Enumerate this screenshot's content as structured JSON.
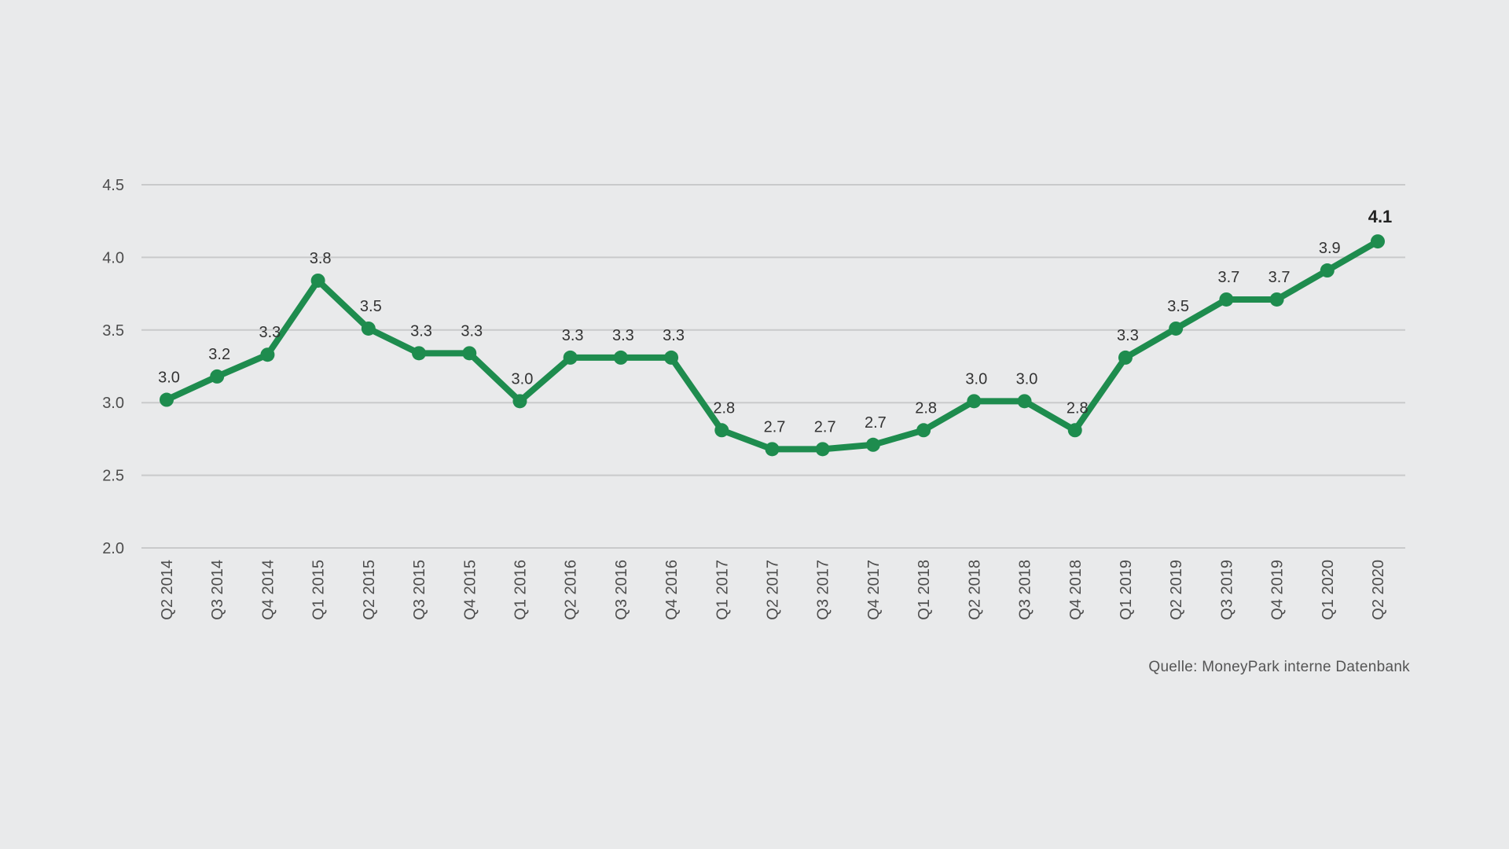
{
  "chart_data": {
    "type": "line",
    "categories": [
      "Q2 2014",
      "Q3 2014",
      "Q4 2014",
      "Q1 2015",
      "Q2 2015",
      "Q3 2015",
      "Q4 2015",
      "Q1 2016",
      "Q2 2016",
      "Q3 2016",
      "Q4 2016",
      "Q1 2017",
      "Q2 2017",
      "Q3 2017",
      "Q4 2017",
      "Q1 2018",
      "Q2 2018",
      "Q3 2018",
      "Q4 2018",
      "Q1 2019",
      "Q2 2019",
      "Q3 2019",
      "Q4 2019",
      "Q1 2020",
      "Q2 2020"
    ],
    "series": [
      {
        "values": [
          3.02,
          3.18,
          3.33,
          3.84,
          3.51,
          3.34,
          3.34,
          3.01,
          3.31,
          3.31,
          3.31,
          2.81,
          2.68,
          2.68,
          2.71,
          2.81,
          3.01,
          3.01,
          2.81,
          3.31,
          3.51,
          3.71,
          3.71,
          3.91,
          4.11
        ],
        "labels": [
          "3.0",
          "3.2",
          "3.3",
          "3.8",
          "3.5",
          "3.3",
          "3.3",
          "3.0",
          "3.3",
          "3.3",
          "3.3",
          "2.8",
          "2.7",
          "2.7",
          "2.7",
          "2.8",
          "3.0",
          "3.0",
          "2.8",
          "3.3",
          "3.5",
          "3.7",
          "3.7",
          "3.9",
          "4.1"
        ],
        "color": "#1e8c4e"
      }
    ],
    "yticks": [
      "2.0",
      "2.5",
      "3.0",
      "3.5",
      "4.0",
      "4.5"
    ],
    "ylim": [
      2.0,
      4.5
    ],
    "grid": true,
    "legend": "none",
    "title": "",
    "xlabel": "",
    "ylabel": ""
  },
  "source_note": "Quelle: MoneyPark interne Datenbank"
}
